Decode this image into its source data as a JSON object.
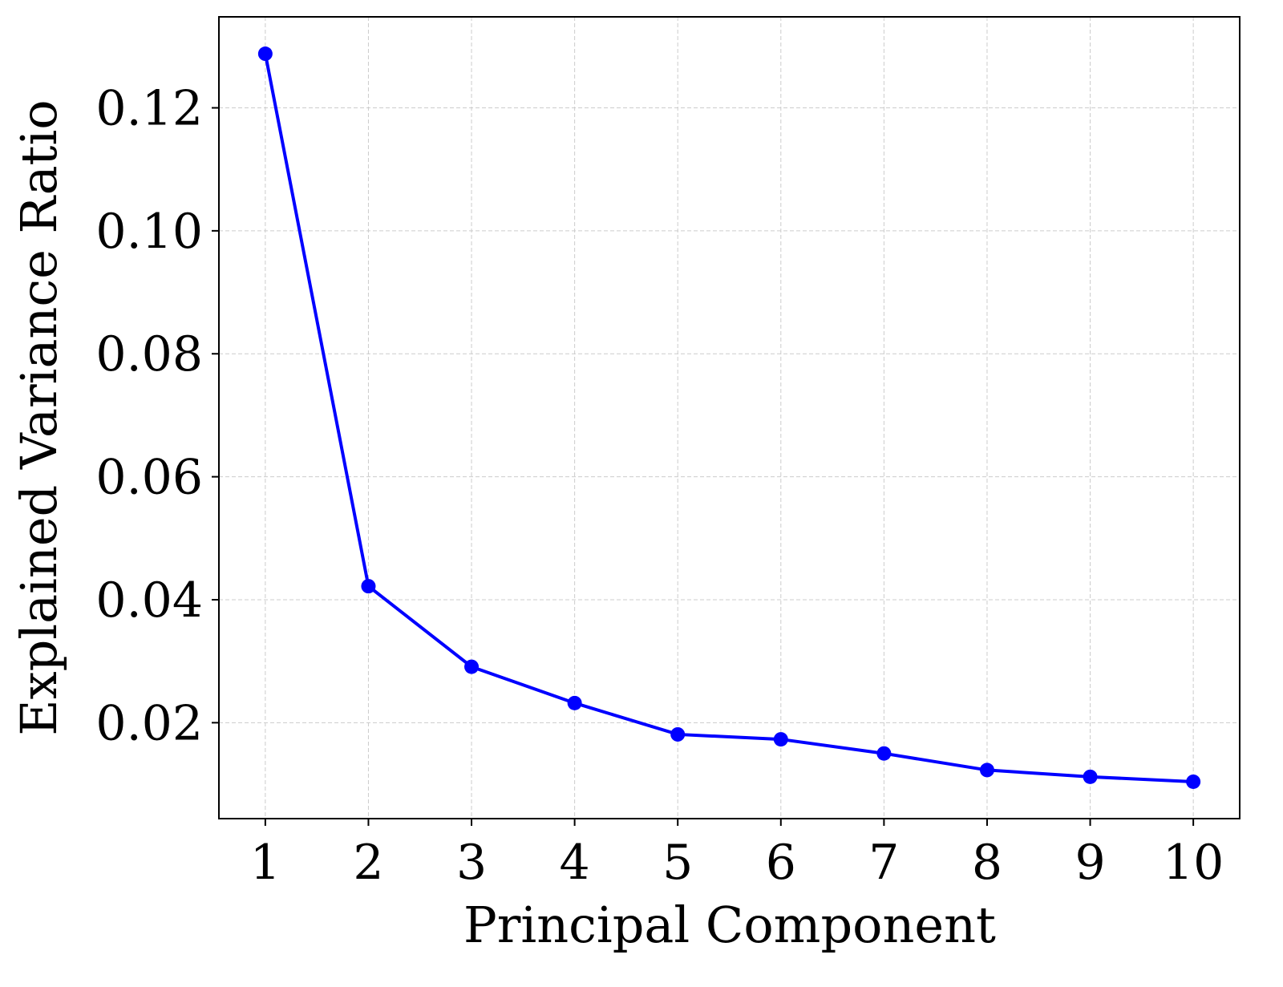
{
  "chart_data": {
    "type": "line",
    "title": "",
    "xlabel": "Principal Component",
    "ylabel": "Explained Variance Ratio",
    "x": [
      1,
      2,
      3,
      4,
      5,
      6,
      7,
      8,
      9,
      10
    ],
    "series": [
      {
        "values": [
          0.1288,
          0.0422,
          0.0291,
          0.0232,
          0.0181,
          0.0173,
          0.015,
          0.0123,
          0.0112,
          0.0104
        ],
        "color": "#0000ff",
        "marker": "circle"
      }
    ],
    "xticks": [
      "1",
      "2",
      "3",
      "4",
      "5",
      "6",
      "7",
      "8",
      "9",
      "10"
    ],
    "yticks": [
      "0.02",
      "0.04",
      "0.06",
      "0.08",
      "0.10",
      "0.12"
    ],
    "xlim": [
      0.55,
      10.45
    ],
    "ylim": [
      0.0044,
      0.1348
    ],
    "grid": true,
    "grid_style": "dashed",
    "grid_color": "#cccccc"
  }
}
